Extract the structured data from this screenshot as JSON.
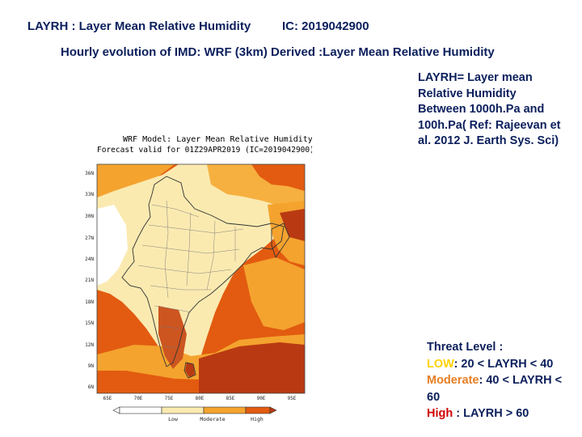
{
  "header": {
    "left": "LAYRH : Layer Mean Relative Humidity",
    "right": "IC: 2019042900"
  },
  "subtitle": "Hourly evolution of IMD: WRF (3km) Derived :Layer Mean Relative Humidity",
  "definition": "LAYRH= Layer mean Relative Humidity Between 1000h.Pa and 100h.Pa( Ref: Rajeevan et al. 2012 J. Earth Sys. Sci)",
  "map": {
    "title_line1": "WRF Model: Layer Mean Relative Humidity",
    "title_line2": "Forecast valid for 01Z29APR2019 (IC=2019042900)",
    "lat_labels": [
      "36N",
      "33N",
      "30N",
      "27N",
      "24N",
      "21N",
      "18N",
      "15N",
      "12N",
      "9N",
      "6N"
    ],
    "lon_labels": [
      "65E",
      "70E",
      "75E",
      "80E",
      "85E",
      "90E",
      "95E"
    ],
    "legend": {
      "low": "Low",
      "moderate": "Moderate",
      "high": "High"
    },
    "colors": {
      "none": "#ffffff",
      "low": "#fbeab0",
      "moderate": "#f4a32e",
      "high": "#e25b10",
      "very_high": "#b93a12"
    }
  },
  "threat": {
    "title": "Threat Level :",
    "low_label": "LOW",
    "low_rule": ": 20 < LAYRH <  40",
    "moderate_label": "Moderate",
    "moderate_rule": ": 40 < LAYRH < 60",
    "high_label": "High",
    "high_rule": " : LAYRH > 60"
  }
}
